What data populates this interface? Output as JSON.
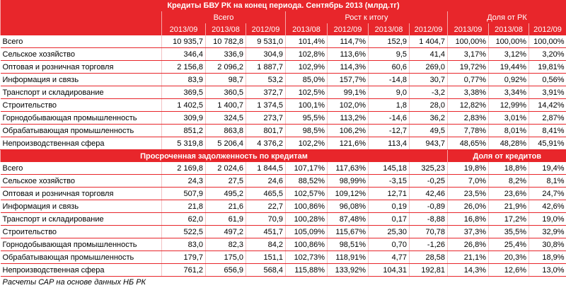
{
  "title": "Кредиты БВУ РК на конец периода. Сентябрь 2013 (млрд.тг)",
  "header": {
    "groups": [
      "Всего",
      "Рост к итогу",
      "Доля от РК"
    ],
    "years": [
      "2013/09",
      "2013/08",
      "2012/09",
      "2013/08",
      "2012/09",
      "2013/08",
      "2012/09",
      "2013/09",
      "2013/08",
      "2012/09"
    ]
  },
  "section1": {
    "rows": [
      {
        "label": "Всего",
        "cells": [
          "10 935,7",
          "10 782,8",
          "9 531,0",
          "101,4%",
          "114,7%",
          "152,9",
          "1 404,7",
          "100,00%",
          "100,00%",
          "100,00%"
        ]
      },
      {
        "label": "Сельское хозяйство",
        "cells": [
          "346,4",
          "336,9",
          "304,9",
          "102,8%",
          "113,6%",
          "9,5",
          "41,4",
          "3,17%",
          "3,12%",
          "3,20%"
        ]
      },
      {
        "label": "Оптовая и розничная торговля",
        "cells": [
          "2 156,8",
          "2 096,2",
          "1 887,7",
          "102,9%",
          "114,3%",
          "60,6",
          "269,0",
          "19,72%",
          "19,44%",
          "19,81%"
        ]
      },
      {
        "label": "Информация и связь",
        "cells": [
          "83,9",
          "98,7",
          "53,2",
          "85,0%",
          "157,7%",
          "-14,8",
          "30,7",
          "0,77%",
          "0,92%",
          "0,56%"
        ]
      },
      {
        "label": "Транспорт и складирование",
        "cells": [
          "369,5",
          "360,5",
          "372,7",
          "102,5%",
          "99,1%",
          "9,0",
          "-3,2",
          "3,38%",
          "3,34%",
          "3,91%"
        ]
      },
      {
        "label": "Строительство",
        "cells": [
          "1 402,5",
          "1 400,7",
          "1 374,5",
          "100,1%",
          "102,0%",
          "1,8",
          "28,0",
          "12,82%",
          "12,99%",
          "14,42%"
        ]
      },
      {
        "label": "Горнодобывающая промышленность",
        "cells": [
          "309,9",
          "324,5",
          "273,7",
          "95,5%",
          "113,2%",
          "-14,6",
          "36,2",
          "2,83%",
          "3,01%",
          "2,87%"
        ]
      },
      {
        "label": "Обрабатывающая промышленность",
        "cells": [
          "851,2",
          "863,8",
          "801,7",
          "98,5%",
          "106,2%",
          "-12,7",
          "49,5",
          "7,78%",
          "8,01%",
          "8,41%"
        ]
      },
      {
        "label": "Непроизводственная сфера",
        "cells": [
          "5 319,8",
          "5 206,4",
          "4 376,2",
          "102,2%",
          "121,6%",
          "113,4",
          "943,7",
          "48,65%",
          "48,28%",
          "45,91%"
        ]
      }
    ]
  },
  "section2": {
    "title": "Просроченная задолженность по кредитам",
    "share_title": "Доля от кредитов",
    "rows": [
      {
        "label": "Всего",
        "cells": [
          "2 169,8",
          "2 024,6",
          "1 844,5",
          "107,17%",
          "117,63%",
          "145,18",
          "325,23",
          "19,8%",
          "18,8%",
          "19,4%"
        ]
      },
      {
        "label": "Сельское хозяйство",
        "cells": [
          "24,3",
          "27,5",
          "24,6",
          "88,52%",
          "98,99%",
          "-3,15",
          "-0,25",
          "7,0%",
          "8,2%",
          "8,1%"
        ]
      },
      {
        "label": "Оптовая и розничная торговля",
        "cells": [
          "507,9",
          "495,2",
          "465,5",
          "102,57%",
          "109,12%",
          "12,71",
          "42,46",
          "23,5%",
          "23,6%",
          "24,7%"
        ]
      },
      {
        "label": "Информация и связь",
        "cells": [
          "21,8",
          "21,6",
          "22,7",
          "100,86%",
          "96,08%",
          "0,19",
          "-0,89",
          "26,0%",
          "21,9%",
          "42,6%"
        ]
      },
      {
        "label": "Транспорт и складирование",
        "cells": [
          "62,0",
          "61,9",
          "70,9",
          "100,28%",
          "87,48%",
          "0,17",
          "-8,88",
          "16,8%",
          "17,2%",
          "19,0%"
        ]
      },
      {
        "label": "Строительство",
        "cells": [
          "522,5",
          "497,2",
          "451,7",
          "105,09%",
          "115,67%",
          "25,30",
          "70,78",
          "37,3%",
          "35,5%",
          "32,9%"
        ]
      },
      {
        "label": "Горнодобывающая промышленность",
        "cells": [
          "83,0",
          "82,3",
          "84,2",
          "100,86%",
          "98,51%",
          "0,70",
          "-1,26",
          "26,8%",
          "25,4%",
          "30,8%"
        ]
      },
      {
        "label": "Обрабатывающая промышленность",
        "cells": [
          "179,7",
          "175,0",
          "151,1",
          "102,73%",
          "118,91%",
          "4,77",
          "28,58",
          "21,1%",
          "20,3%",
          "18,9%"
        ]
      },
      {
        "label": "Непроизводственная сфера",
        "cells": [
          "761,2",
          "656,9",
          "568,4",
          "115,88%",
          "133,92%",
          "104,31",
          "192,81",
          "14,3%",
          "12,6%",
          "13,0%"
        ]
      }
    ]
  },
  "footer": "Расчеты САР на основе данных НБ РК"
}
